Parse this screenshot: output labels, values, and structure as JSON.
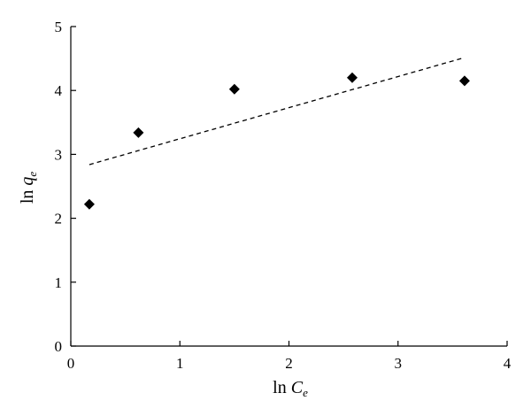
{
  "chart_data": {
    "type": "scatter",
    "xlabel": {
      "main": "ln ",
      "var": "C",
      "sub": "e"
    },
    "ylabel": {
      "main": "ln ",
      "var": "q",
      "sub": "e"
    },
    "xlim": [
      0,
      4
    ],
    "ylim": [
      0,
      5
    ],
    "xticks": [
      "0",
      "1",
      "2",
      "3",
      "4"
    ],
    "yticks": [
      "0",
      "1",
      "2",
      "3",
      "4",
      "5"
    ],
    "grid": false,
    "points": [
      {
        "x": 0.17,
        "y": 2.22
      },
      {
        "x": 0.62,
        "y": 3.34
      },
      {
        "x": 1.5,
        "y": 4.02
      },
      {
        "x": 2.58,
        "y": 4.2
      },
      {
        "x": 3.61,
        "y": 4.15
      }
    ],
    "trendline": {
      "style": "dashed",
      "start": {
        "x": 0.17,
        "y": 2.84
      },
      "end": {
        "x": 3.58,
        "y": 4.5
      }
    },
    "marker": "diamond",
    "marker_color": "#000000"
  }
}
